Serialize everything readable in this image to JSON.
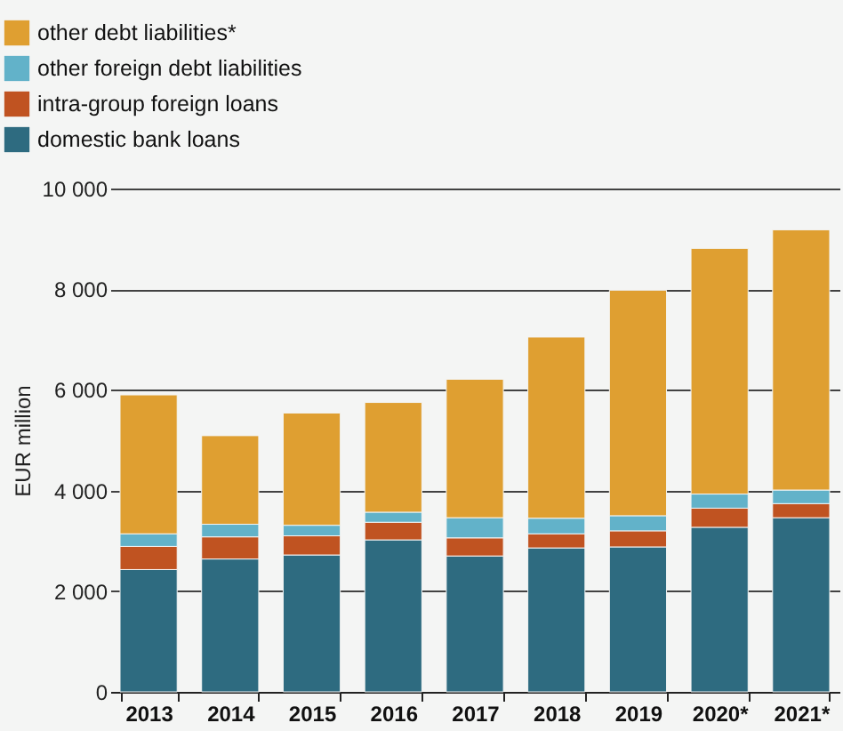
{
  "chart_data": {
    "type": "bar",
    "stacked": true,
    "ylabel": "EUR million",
    "categories": [
      "2013",
      "2014",
      "2015",
      "2016",
      "2017",
      "2018",
      "2019",
      "2020*",
      "2021*"
    ],
    "series": [
      {
        "name": "domestic bank loans",
        "color": "#2e6b80",
        "values": [
          2430,
          2640,
          2720,
          3020,
          2700,
          2860,
          2880,
          3270,
          3460
        ]
      },
      {
        "name": "intra-group foreign loans",
        "color": "#c05321",
        "values": [
          460,
          440,
          380,
          350,
          360,
          280,
          320,
          380,
          280
        ]
      },
      {
        "name": "other foreign debt liabilities",
        "color": "#62b2c9",
        "values": [
          250,
          250,
          210,
          200,
          400,
          310,
          300,
          280,
          270
        ]
      },
      {
        "name": "other debt liabilities*",
        "color": "#df9f31",
        "values": [
          2760,
          1760,
          2230,
          2180,
          2750,
          3600,
          4480,
          4880,
          5170
        ]
      }
    ],
    "ylim": [
      0,
      10000
    ],
    "yticks": [
      0,
      {
        "value": 2000,
        "label": "2 000"
      },
      {
        "value": 4000,
        "label": "4 000"
      },
      {
        "value": 6000,
        "label": "6 000"
      },
      {
        "value": 8000,
        "label": "8 000"
      },
      {
        "value": 10000,
        "label": "10 000"
      }
    ],
    "grid": "y",
    "legend": "top left"
  }
}
